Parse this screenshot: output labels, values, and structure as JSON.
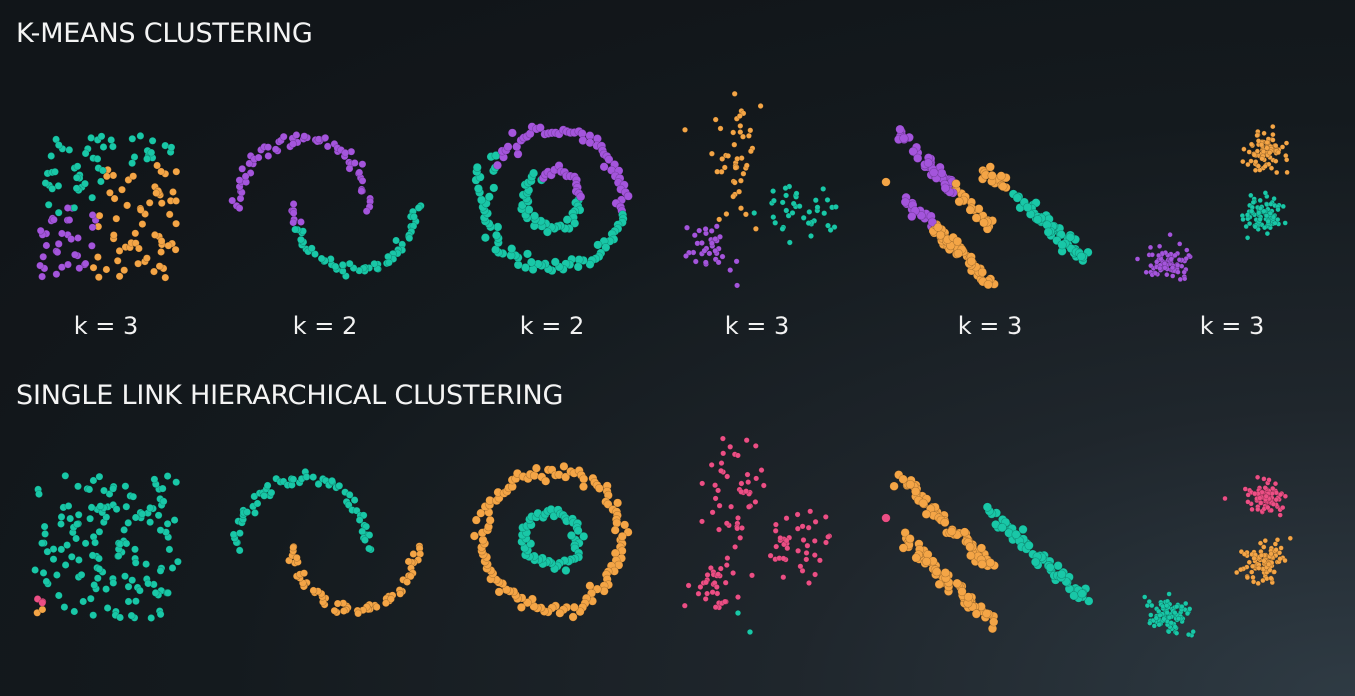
{
  "colors": {
    "teal": "#19c7a7",
    "purple": "#a455dc",
    "orange": "#f4a546",
    "pink": "#ec4f85",
    "background": "#171d21"
  },
  "sections": {
    "kmeans": {
      "title": "K-MEANS CLUSTERING"
    },
    "single_link": {
      "title": "SINGLE LINK HIERARCHICAL CLUSTERING"
    }
  },
  "chart_data": [
    {
      "type": "scatter",
      "title": "K-MEANS CLUSTERING",
      "panels": [
        {
          "dataset": "uniform-square",
          "label": "k = 3",
          "assignment": "three vertical bands: teal left-top, purple left-bottom, orange right"
        },
        {
          "dataset": "two-moons",
          "label": "k = 2",
          "assignment": "purple upper half, teal lower half (each moon split)"
        },
        {
          "dataset": "concentric-circles",
          "label": "k = 2",
          "assignment": "purple top half of both rings, teal bottom half"
        },
        {
          "dataset": "irregular-blobs",
          "label": "k = 3",
          "assignment": "orange top, teal right, purple lower-left"
        },
        {
          "dataset": "parallel-diagonal-lines",
          "label": "k = 3",
          "assignment": "purple upper parts, orange middle, teal lower-right line"
        },
        {
          "dataset": "three-gaussian-blobs",
          "label": "k = 3",
          "assignment": "orange top-right, teal middle-right, purple bottom-left"
        }
      ]
    },
    {
      "type": "scatter",
      "title": "SINGLE LINK HIERARCHICAL CLUSTERING",
      "panels": [
        {
          "dataset": "uniform-square",
          "label": "",
          "assignment": "almost all teal, a few pink/orange points bottom-left"
        },
        {
          "dataset": "two-moons",
          "label": "",
          "assignment": "teal upper moon, orange lower moon"
        },
        {
          "dataset": "concentric-circles",
          "label": "",
          "assignment": "orange outer ring, teal inner ring"
        },
        {
          "dataset": "irregular-blobs",
          "label": "",
          "assignment": "mostly pink, two teal outliers"
        },
        {
          "dataset": "parallel-diagonal-lines",
          "label": "",
          "assignment": "orange left two lines, teal right line, one pink point"
        },
        {
          "dataset": "three-gaussian-blobs",
          "label": "",
          "assignment": "pink top-right, orange middle-right, teal bottom-left"
        }
      ]
    }
  ]
}
